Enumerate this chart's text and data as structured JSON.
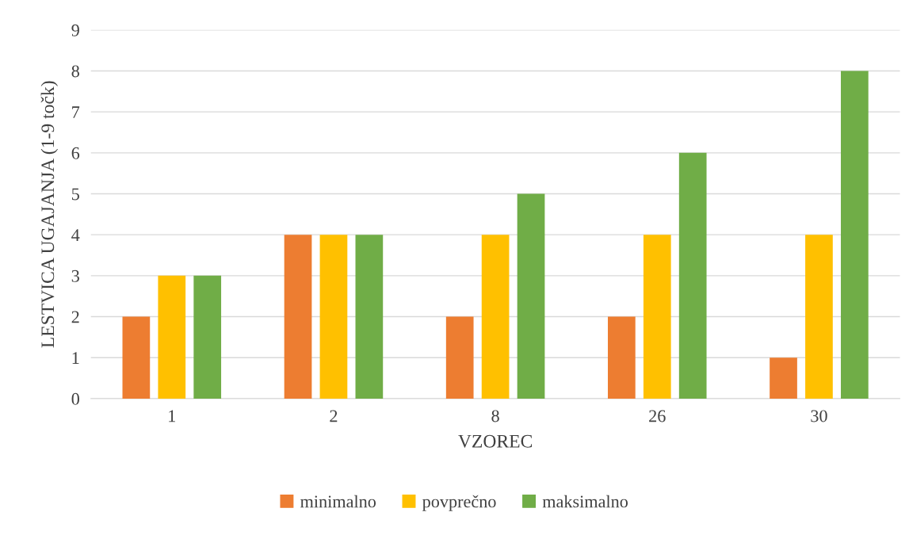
{
  "chart_data": {
    "type": "bar",
    "xlabel": "VZOREC",
    "ylabel": "LESTVICA UGAJANJA (1-9 točk)",
    "categories": [
      "1",
      "2",
      "8",
      "26",
      "30"
    ],
    "series": [
      {
        "name": "minimalno",
        "color": "#ed7d31",
        "values": [
          2,
          4,
          2,
          2,
          1
        ]
      },
      {
        "name": "povprečno",
        "color": "#ffc000",
        "values": [
          3,
          4,
          4,
          4,
          4
        ]
      },
      {
        "name": "maksimalno",
        "color": "#70ad47",
        "values": [
          3,
          4,
          5,
          6,
          8
        ]
      }
    ],
    "ylim": [
      0,
      9
    ],
    "yticks": [
      0,
      1,
      2,
      3,
      4,
      5,
      6,
      7,
      8,
      9
    ],
    "grid": "y",
    "legend": "bottom"
  }
}
